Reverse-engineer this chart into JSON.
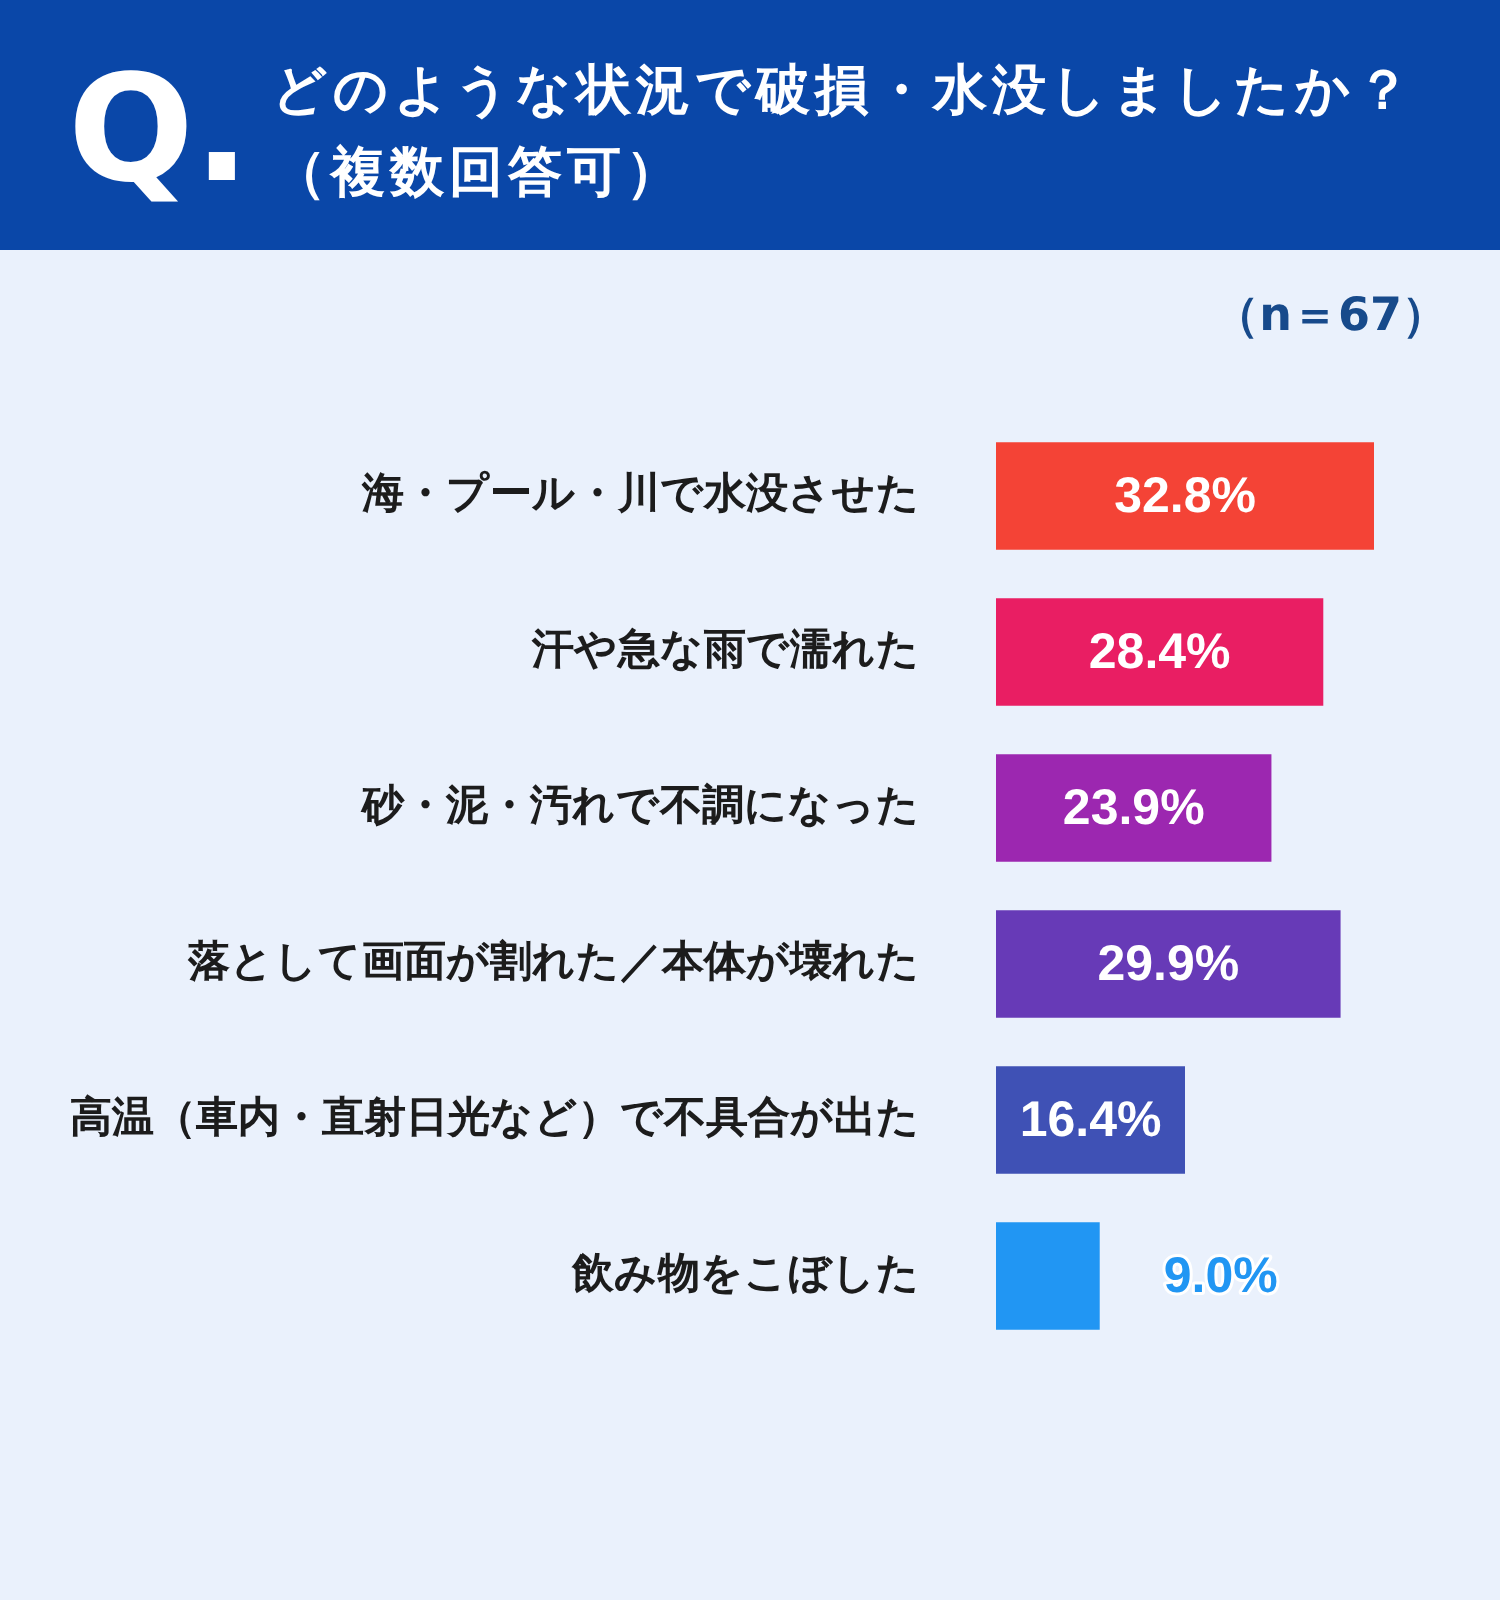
{
  "chart_data": {
    "type": "bar",
    "orientation": "horizontal",
    "title": "どのような状況で破損・水没しましたか？（複数回答可）",
    "subtitle": "（n＝67）",
    "annotations": [
      "Q."
    ],
    "categories": [
      "海・プール・川で水没させた",
      "汗や急な雨で濡れた",
      "砂・泥・汚れで不調になった",
      "落として画面が割れた／本体が壊れた",
      "高温（車内・直射日光など）で不具合が出た",
      "飲み物をこぼした"
    ],
    "values": [
      32.8,
      28.4,
      23.9,
      29.9,
      16.4,
      9.0
    ],
    "colors": [
      "#f44336",
      "#e91e63",
      "#9c27b0",
      "#673ab7",
      "#3f51b5",
      "#2196f3"
    ],
    "value_labels": [
      "32.8%",
      "28.4%",
      "23.9%",
      "29.9%",
      "16.4%",
      "9.0%"
    ],
    "tick_labels": "y"
  }
}
